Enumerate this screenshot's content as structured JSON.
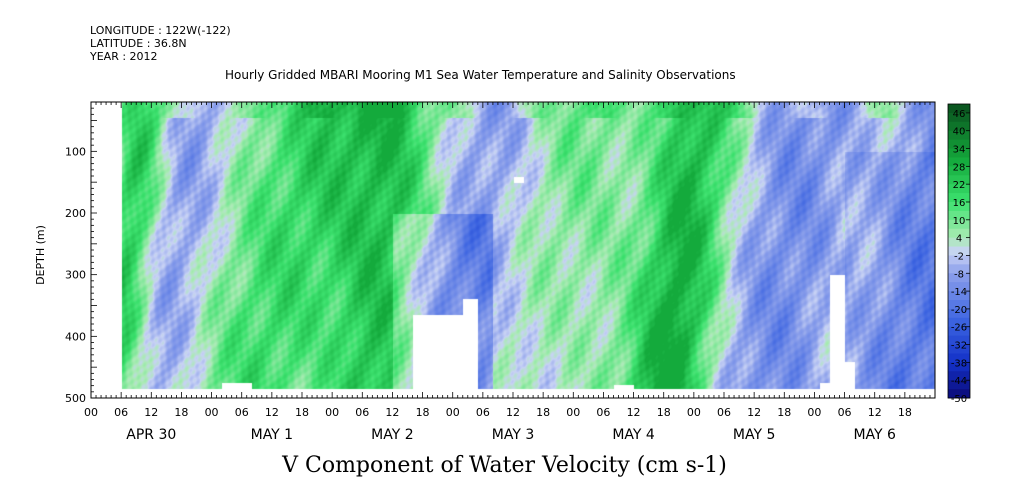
{
  "header": {
    "longitude": "LONGITUDE : 122W(-122)",
    "latitude": "LATITUDE : 36.8N",
    "year": "YEAR : 2012"
  },
  "chart_data": {
    "type": "heatmap",
    "title": "Hourly Gridded MBARI Mooring M1 Sea Water Temperature and Salinity Observations",
    "xlabel": "V Component of Water Velocity (cm s-1)",
    "ylabel": "DEPTH (m)",
    "ylim": [
      500,
      20
    ],
    "y_ticks": [
      "100",
      "200",
      "300",
      "400",
      "500"
    ],
    "x_hour_ticks": [
      "00",
      "06",
      "12",
      "18"
    ],
    "x_days": [
      "APR 30",
      "MAY  1",
      "MAY  2",
      "MAY  3",
      "MAY  4",
      "MAY  5",
      "MAY  6"
    ],
    "colorbar": {
      "labels": [
        "46",
        "40",
        "34",
        "28",
        "22",
        "16",
        "10",
        "4",
        "-2",
        "-8",
        "-14",
        "-20",
        "-26",
        "-32",
        "-38",
        "-44",
        "-50"
      ],
      "range": [
        -50,
        49
      ],
      "step": 3
    },
    "data_start": "APR 30 06",
    "grid": false,
    "colors": {
      "strong_negative": "#0a0a78",
      "negative": "#3a62dc",
      "near_zero": "#b4c4ec",
      "positive": "#34e070",
      "strong_positive": "#0a5020"
    }
  }
}
